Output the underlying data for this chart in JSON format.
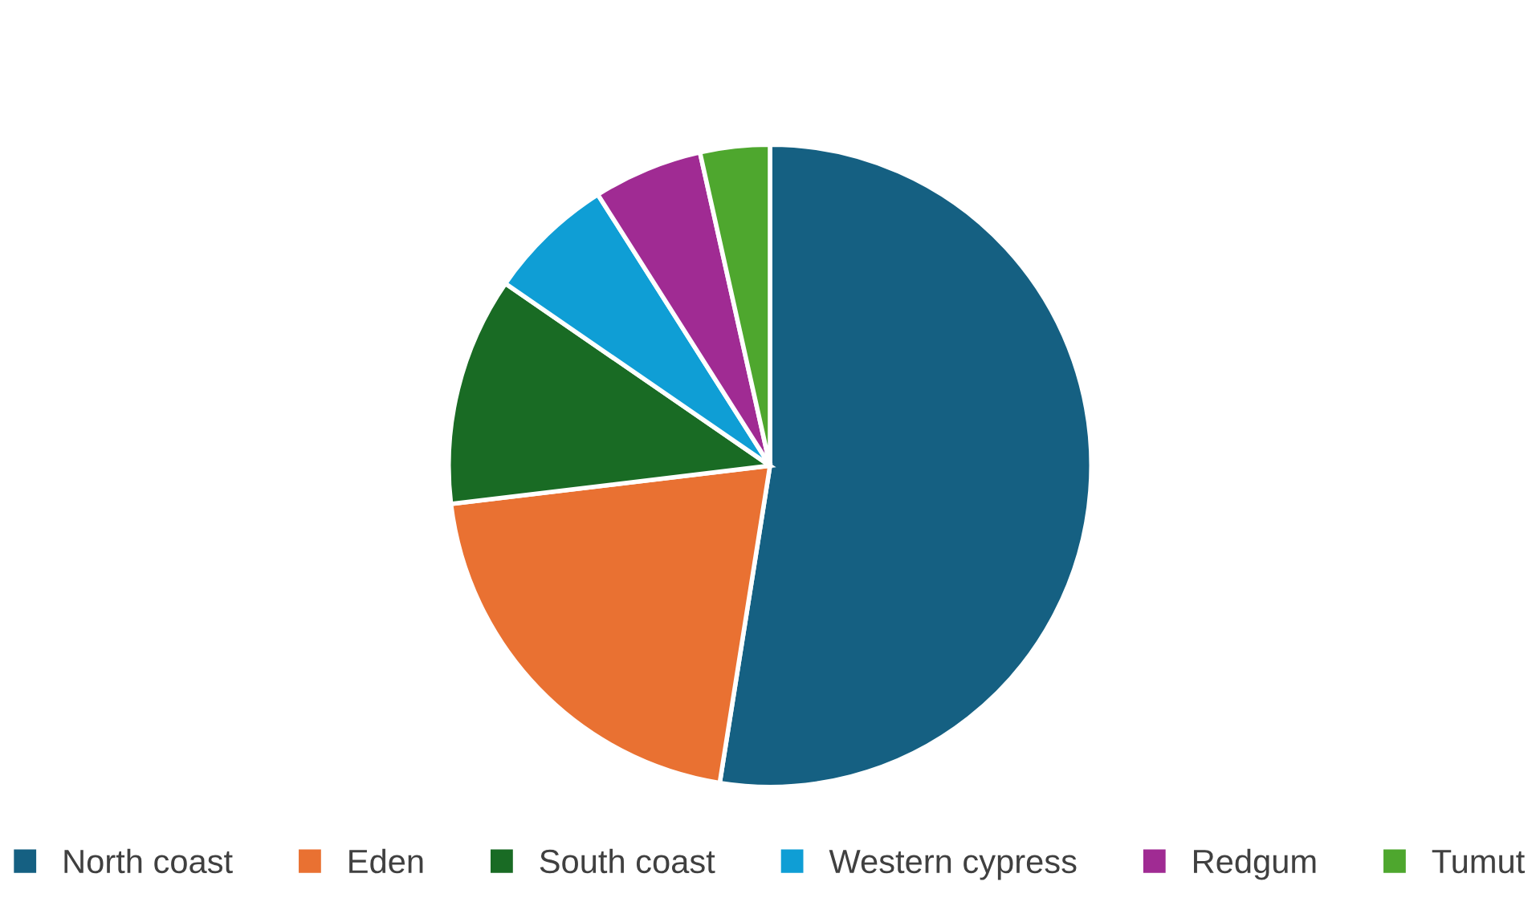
{
  "chart_data": {
    "type": "pie",
    "categories": [
      "North coast",
      "Eden",
      "South coast",
      "Western cypress",
      "Redgum",
      "Tumut"
    ],
    "values": [
      52.5,
      20.6,
      11.5,
      6.4,
      5.5,
      3.5
    ],
    "colors": [
      "#156082",
      "#e97132",
      "#196b24",
      "#0f9ed5",
      "#a02b93",
      "#4ea72e"
    ],
    "legend": "bottom"
  }
}
